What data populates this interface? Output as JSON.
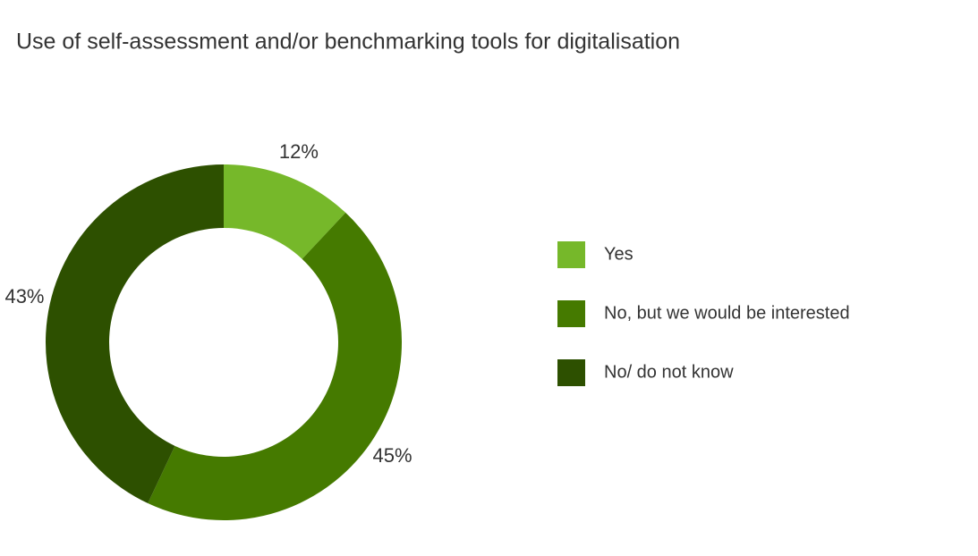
{
  "chart_data": {
    "type": "donut",
    "title": "Use of self-assessment and/or benchmarking tools for digitalisation",
    "categories": [
      "Yes",
      "No, but we would be interested",
      "No/ do not know"
    ],
    "values": [
      12,
      45,
      43
    ],
    "value_labels": [
      "12%",
      "45%",
      "43%"
    ],
    "colors": [
      "#76b82a",
      "#457a00",
      "#2d5000"
    ],
    "legend": "right"
  }
}
